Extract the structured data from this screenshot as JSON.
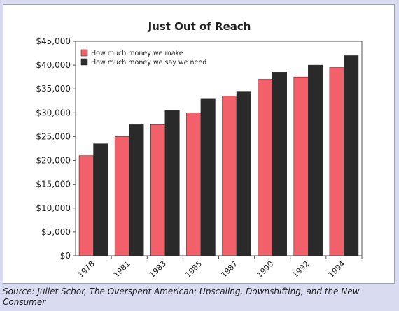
{
  "chart_data": {
    "type": "bar",
    "title": "Just Out of Reach",
    "categories": [
      "1978",
      "1981",
      "1983",
      "1985",
      "1987",
      "1990",
      "1992",
      "1994"
    ],
    "series": [
      {
        "name": "How much money we make",
        "values": [
          21000,
          25000,
          27500,
          30000,
          33500,
          37000,
          37500,
          39500
        ],
        "color": "#f2606a"
      },
      {
        "name": "How much money we say we need",
        "values": [
          23500,
          27500,
          30500,
          33000,
          34500,
          38500,
          40000,
          42000
        ],
        "color": "#2a2a2a"
      }
    ],
    "yticks": [
      "$0",
      "$5,000",
      "$10,000",
      "$15,000",
      "$20,000",
      "$25,000",
      "$30,000",
      "$35,000",
      "$40,000",
      "$45,000"
    ],
    "ylim": [
      0,
      45000
    ],
    "xlabel": "",
    "ylabel": "",
    "grid": false,
    "legend_position": "top-left",
    "x_tick_rotation": "diagonal"
  },
  "source": "Source: Juliet Schor, The Overspent American: Upscaling, Downshifting, and the New Consumer"
}
